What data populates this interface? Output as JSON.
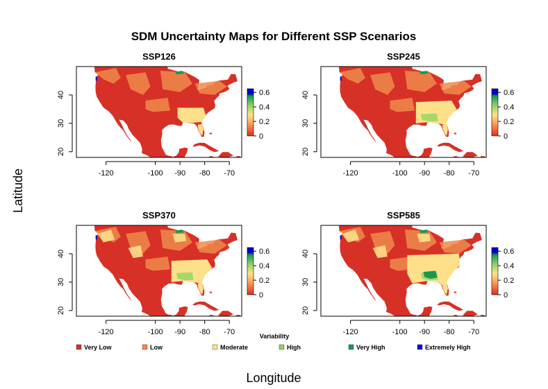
{
  "title": "SDM Uncertainty Maps for Different SSP Scenarios",
  "x_axis_label": "Longitude",
  "y_axis_label": "Latitude",
  "panels": [
    {
      "title": "SSP126",
      "moderate_extent": "southeast-coastal",
      "high_patch": false,
      "very_high_patch": false
    },
    {
      "title": "SSP245",
      "moderate_extent": "southeast-broad",
      "high_patch": true,
      "very_high_patch": false
    },
    {
      "title": "SSP370",
      "moderate_extent": "southeast-broad",
      "high_patch": true,
      "very_high_patch": false
    },
    {
      "title": "SSP585",
      "moderate_extent": "southeast-wide",
      "high_patch": true,
      "very_high_patch": true
    }
  ],
  "map_axes": {
    "x_ticks": [
      "-120",
      "-100",
      "-90",
      "-80",
      "-70"
    ],
    "x_tick_values": [
      -120,
      -100,
      -90,
      -80,
      -70
    ],
    "y_ticks": [
      "20",
      "30",
      "40"
    ],
    "y_tick_values": [
      20,
      30,
      40
    ],
    "lon_range": [
      -132,
      -65
    ],
    "lat_range": [
      18,
      50
    ]
  },
  "colorbar": {
    "ticks": [
      "0.6",
      "0.4",
      "0.2",
      "0"
    ],
    "tick_values": [
      0.6,
      0.4,
      0.2,
      0
    ],
    "range": [
      0,
      0.65
    ],
    "colors": [
      "#d73027",
      "#f46d43",
      "#fdae61",
      "#fee08b",
      "#a6d96a",
      "#66bd63",
      "#1a9850",
      "#0000cc"
    ]
  },
  "legend": {
    "title": "Variability",
    "items": [
      {
        "label": "Very Low",
        "color": "#d73027"
      },
      {
        "label": "Low",
        "color": "#f08a4b"
      },
      {
        "label": "Moderate",
        "color": "#fee08b"
      },
      {
        "label": "High",
        "color": "#91cf60"
      },
      {
        "label": "Very High",
        "color": "#1a9850"
      },
      {
        "label": "Extremely High",
        "color": "#0000ee"
      }
    ]
  },
  "colors": {
    "very_low": "#d73027",
    "low": "#f08a4b",
    "moderate": "#fee08b",
    "high": "#a6d96a",
    "very_high": "#1a9850",
    "extremely_high": "#0000cc",
    "ocean": "#ffffff"
  }
}
